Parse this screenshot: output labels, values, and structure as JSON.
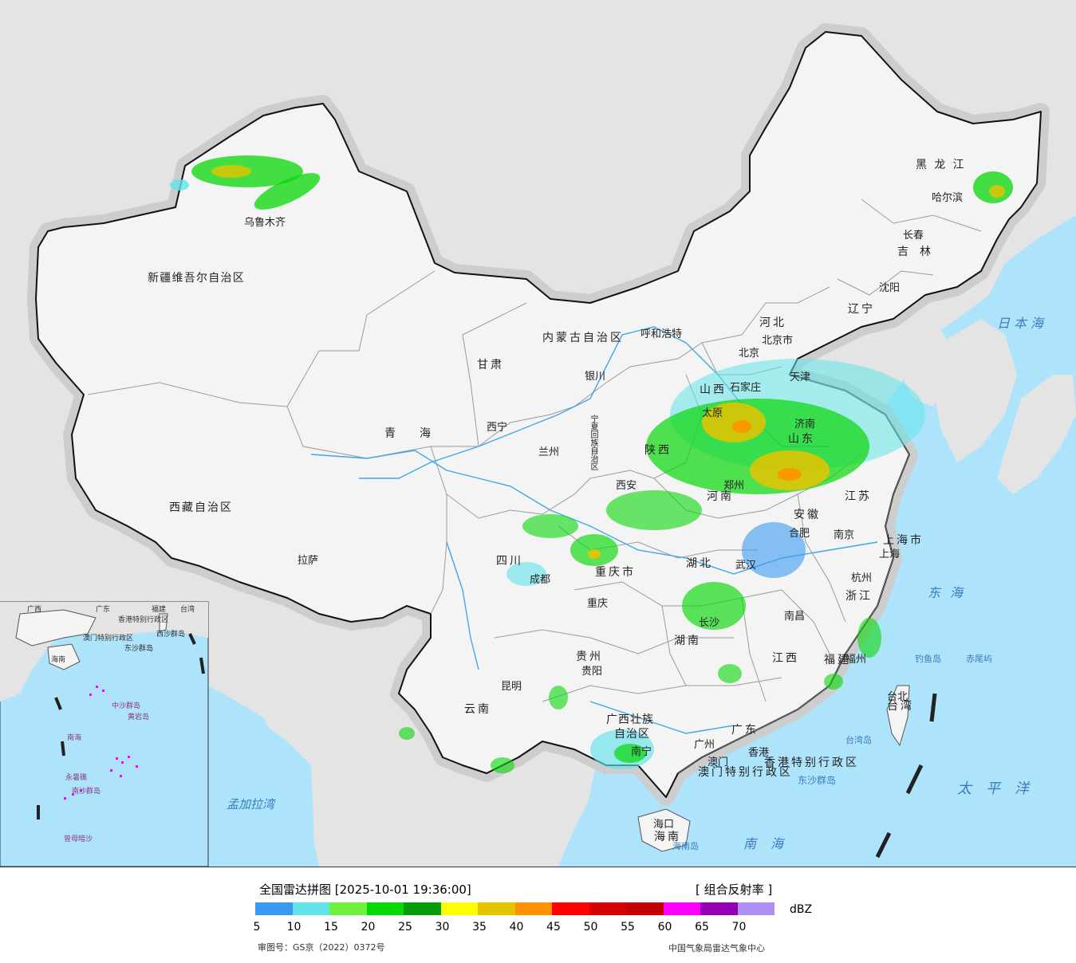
{
  "legend": {
    "title": "全国雷达拼图 [2025-10-01 19:36:00]",
    "product": "[ 组合反射率 ]",
    "unit": "dBZ",
    "ticks": [
      "5",
      "10",
      "15",
      "20",
      "25",
      "30",
      "35",
      "40",
      "45",
      "50",
      "55",
      "60",
      "65",
      "70"
    ],
    "colors": [
      "#3b99f0",
      "#62e3ea",
      "#70f13f",
      "#08d708",
      "#069b09",
      "#ffff00",
      "#e6c300",
      "#ff9100",
      "#ff0000",
      "#d40000",
      "#c20000",
      "#ff00ff",
      "#9600b4",
      "#ad90f0"
    ]
  },
  "footer": {
    "approval": "审图号：GS京（2022）0372号",
    "source": "中国气象局雷达气象中心"
  },
  "colors": {
    "sea": "#aee4fb",
    "foreign_land": "#e4e4e4",
    "china_land": "#f4f4f4",
    "halo": "#cdcdcd",
    "river": "#3ea9e6"
  },
  "provinces": [
    "新疆维吾尔自治区",
    "西藏自治区",
    "青海",
    "甘肃",
    "内蒙古自治区",
    "黑龙江",
    "吉林",
    "辽宁",
    "河北",
    "山西",
    "陕西",
    "四川",
    "重庆市",
    "贵州",
    "云南",
    "广西壮族自治区",
    "广东",
    "湖南",
    "湖北",
    "河南",
    "山东",
    "江苏",
    "安徽",
    "浙江",
    "江西",
    "福建",
    "台湾",
    "海南",
    "上海市",
    "宁夏回族自治区",
    "香港特别行政区",
    "澳门特别行政区"
  ],
  "cities": [
    "乌鲁木齐",
    "拉萨",
    "西宁",
    "兰州",
    "银川",
    "呼和浩特",
    "北京",
    "北京市",
    "天津",
    "石家庄",
    "太原",
    "济南",
    "郑州",
    "西安",
    "成都",
    "重庆",
    "贵阳",
    "昆明",
    "南宁",
    "广州",
    "澳门",
    "香港",
    "海口",
    "长沙",
    "武汉",
    "合肥",
    "南京",
    "杭州",
    "南昌",
    "福州",
    "台北",
    "沈阳",
    "长春",
    "哈尔滨",
    "上海"
  ],
  "seas": [
    "日本海",
    "东海",
    "太平洋",
    "南海",
    "孟加拉湾",
    "台湾岛",
    "钓鱼岛",
    "赤尾屿",
    "东沙群岛",
    "海南岛"
  ],
  "inset_labels": [
    "香港特别行政区",
    "澳门特别行政区",
    "东沙群岛",
    "海南",
    "西沙群岛",
    "中沙群岛",
    "南海",
    "黄岩岛",
    "南沙群岛",
    "曾母暗沙",
    "永暑礁",
    "广东",
    "广西",
    "福建",
    "台湾"
  ]
}
